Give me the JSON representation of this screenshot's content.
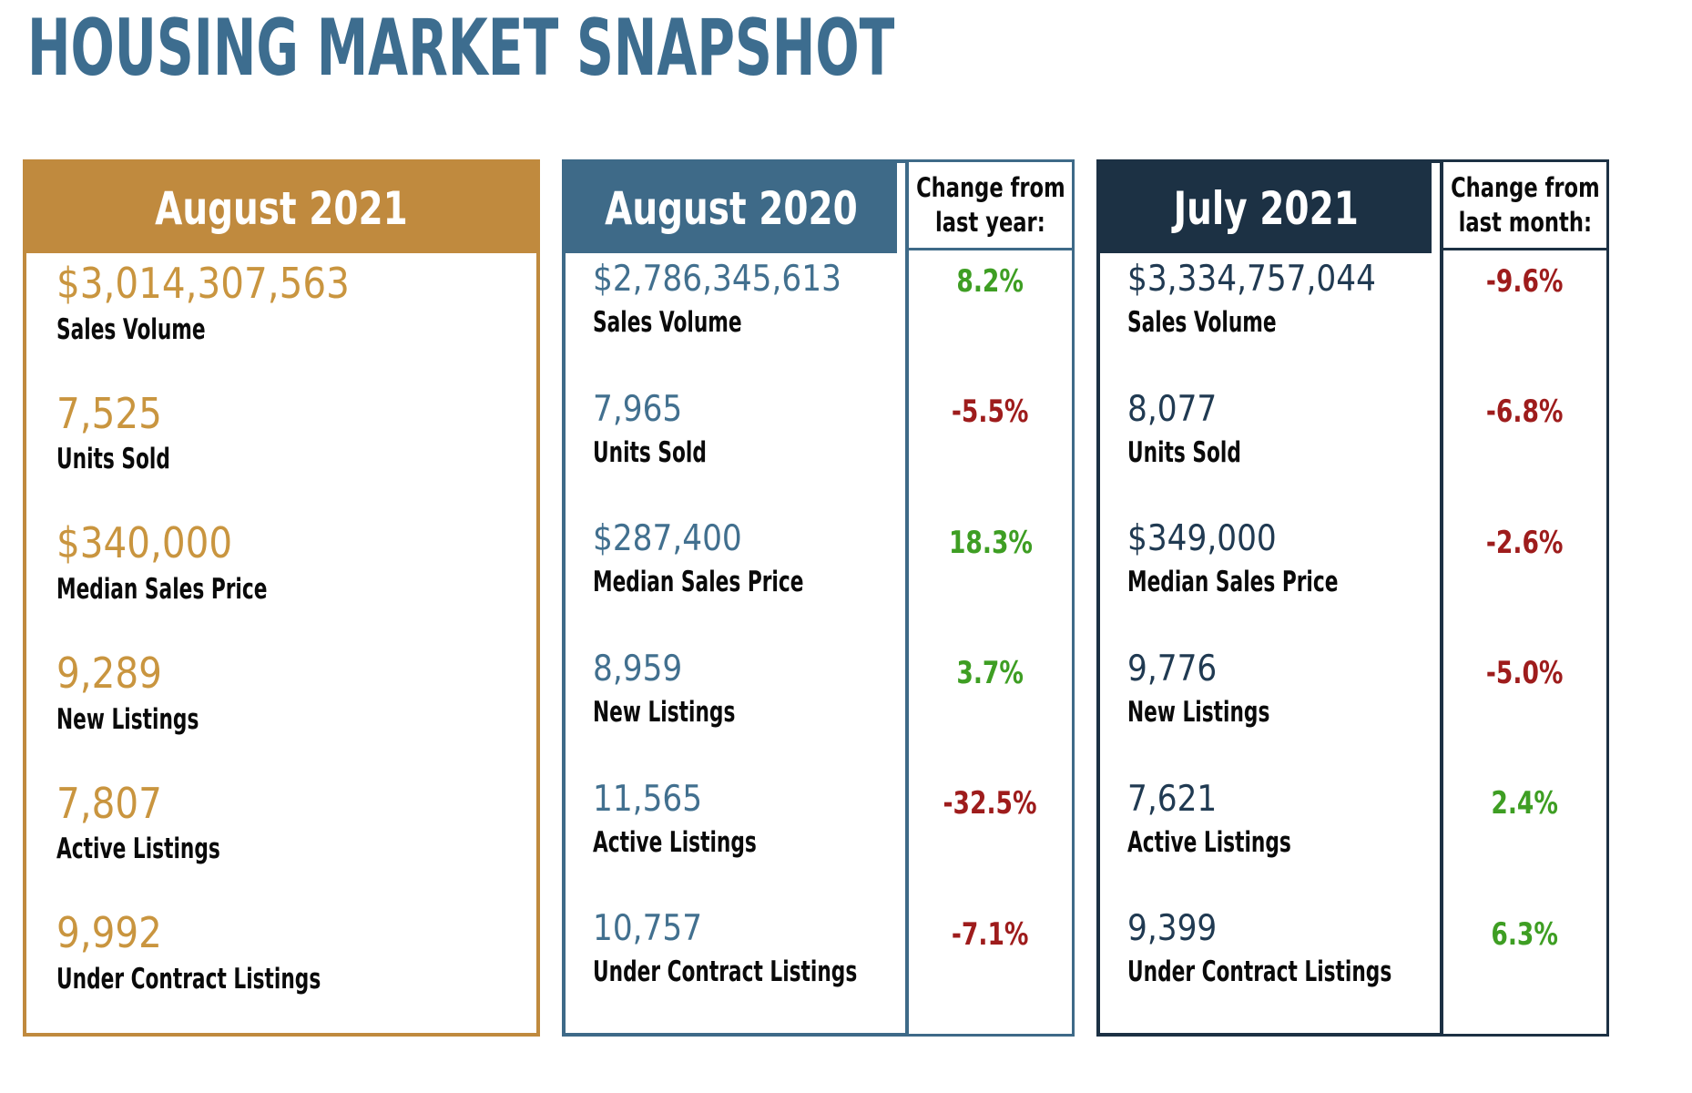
{
  "title": "HOUSING MARKET SNAPSHOT",
  "colors": {
    "title_blue": "#3D6D8F",
    "gold": "#C08A3E",
    "gold_value": "#C9953F",
    "steel_blue": "#3E6A88",
    "steel_blue_value": "#42708F",
    "navy": "#1C3144",
    "navy_value": "#203A52",
    "positive_green": "#3E9E23",
    "negative_red": "#9E1C1C",
    "label_black": "#0A0A0A"
  },
  "metric_labels": [
    "Sales Volume",
    "Units Sold",
    "Median Sales Price",
    "New Listings",
    "Active Listings",
    "Under Contract Listings"
  ],
  "panels": [
    {
      "header": "August 2021",
      "rows": [
        {
          "value": "$3,014,307,563",
          "label": "Sales Volume"
        },
        {
          "value": "7,525",
          "label": "Units Sold"
        },
        {
          "value": "$340,000",
          "label": "Median Sales Price"
        },
        {
          "value": "9,289",
          "label": "New Listings"
        },
        {
          "value": "7,807",
          "label": "Active Listings"
        },
        {
          "value": "9,992",
          "label": "Under Contract Listings"
        }
      ]
    },
    {
      "header": "August 2020",
      "change_header": {
        "line1": "Change from",
        "line2": "last year:"
      },
      "rows": [
        {
          "value": "$2,786,345,613",
          "label": "Sales Volume",
          "change": "8.2%"
        },
        {
          "value": "7,965",
          "label": "Units Sold",
          "change": "-5.5%"
        },
        {
          "value": "$287,400",
          "label": "Median Sales Price",
          "change": "18.3%"
        },
        {
          "value": "8,959",
          "label": "New Listings",
          "change": "3.7%"
        },
        {
          "value": "11,565",
          "label": "Active Listings",
          "change": "-32.5%"
        },
        {
          "value": "10,757",
          "label": "Under Contract Listings",
          "change": "-7.1%"
        }
      ]
    },
    {
      "header": "July 2021",
      "change_header": {
        "line1": "Change from",
        "line2": "last month:"
      },
      "rows": [
        {
          "value": "$3,334,757,044",
          "label": "Sales Volume",
          "change": "-9.6%"
        },
        {
          "value": "8,077",
          "label": "Units Sold",
          "change": "-6.8%"
        },
        {
          "value": "$349,000",
          "label": "Median Sales Price",
          "change": "-2.6%"
        },
        {
          "value": "9,776",
          "label": "New Listings",
          "change": "-5.0%"
        },
        {
          "value": "7,621",
          "label": "Active Listings",
          "change": "2.4%"
        },
        {
          "value": "9,399",
          "label": "Under Contract Listings",
          "change": "6.3%"
        }
      ]
    }
  ],
  "chart_data": {
    "type": "table",
    "title": "HOUSING MARKET SNAPSHOT",
    "row_labels": [
      "Sales Volume",
      "Units Sold",
      "Median Sales Price",
      "New Listings",
      "Active Listings",
      "Under Contract Listings"
    ],
    "columns": [
      "August 2021",
      "August 2020",
      "Change from last year:",
      "July 2021",
      "Change from last month:"
    ],
    "series": [
      {
        "name": "August 2021",
        "values": [
          3014307563,
          7525,
          340000,
          9289,
          7807,
          9992
        ]
      },
      {
        "name": "August 2020",
        "values": [
          2786345613,
          7965,
          287400,
          8959,
          11565,
          10757
        ]
      },
      {
        "name": "Change from last year (%)",
        "values": [
          8.2,
          -5.5,
          18.3,
          3.7,
          -32.5,
          -7.1
        ]
      },
      {
        "name": "July 2021",
        "values": [
          3334757044,
          8077,
          349000,
          9776,
          7621,
          9399
        ]
      },
      {
        "name": "Change from last month (%)",
        "values": [
          -9.6,
          -6.8,
          -2.6,
          -5.0,
          2.4,
          6.3
        ]
      }
    ]
  }
}
